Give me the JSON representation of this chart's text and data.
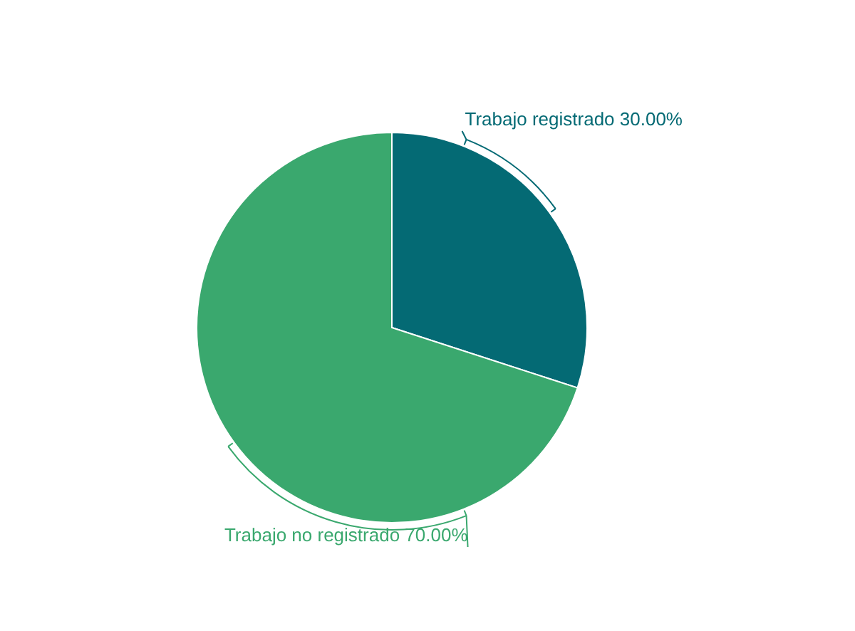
{
  "chart_data": {
    "type": "pie",
    "categories": [
      "Trabajo registrado",
      "Trabajo no registrado"
    ],
    "values": [
      30,
      70
    ],
    "colors": [
      "#046a74",
      "#3aa86e"
    ],
    "value_labels": [
      "30.00%",
      "70.00%"
    ]
  }
}
